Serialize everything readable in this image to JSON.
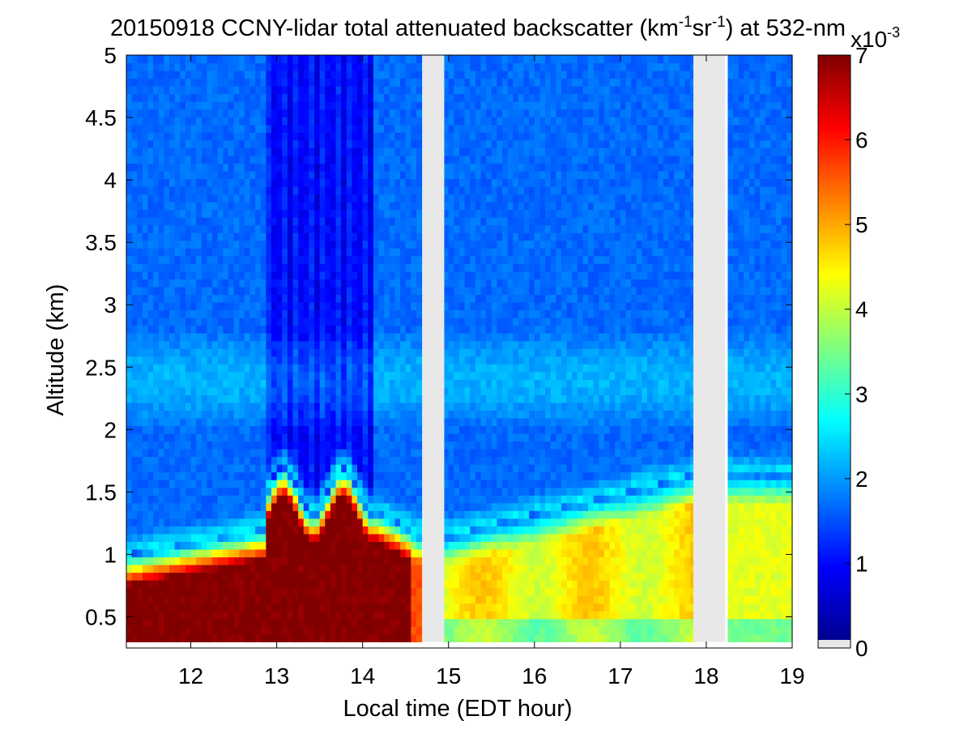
{
  "chart_data": {
    "type": "heatmap",
    "title": {
      "prefix": "20150918 CCNY-lidar total attenuated backscatter (km",
      "exp1": "-1",
      "mid": "sr",
      "exp2": "-1",
      "suffix": ") at 532-nm"
    },
    "xlabel": "Local time (EDT hour)",
    "ylabel": "Altitude (km)",
    "xlim": [
      11.25,
      19.0
    ],
    "ylim": [
      0.25,
      5.0
    ],
    "data_bottom": 0.3,
    "x_ticks": [
      12,
      13,
      14,
      15,
      16,
      17,
      18,
      19
    ],
    "y_ticks": [
      0.5,
      1,
      1.5,
      2,
      2.5,
      3,
      3.5,
      4,
      4.5,
      5
    ],
    "data_gaps": [
      [
        14.7,
        14.95
      ],
      [
        17.85,
        18.22
      ]
    ],
    "colorbar": {
      "range": [
        0,
        7
      ],
      "ticks": [
        0,
        1,
        2,
        3,
        4,
        5,
        6,
        7
      ],
      "multiplier_base": "x10",
      "multiplier_exp": "-3",
      "colormap": "jet",
      "missing_color": "#e8e8e8"
    },
    "layers": [
      {
        "period": [
          11.25,
          14.7
        ],
        "boundary_layer_top_km": [
          1.0,
          1.75
        ],
        "core_value": 7.0
      },
      {
        "period": [
          14.95,
          17.85
        ],
        "boundary_layer_top_km": [
          1.1,
          1.7
        ],
        "core_value": 4.5
      },
      {
        "period": [
          18.22,
          19.0
        ],
        "boundary_layer_top_km": [
          1.6,
          1.75
        ],
        "core_value": 4.3
      }
    ],
    "free_troposphere_value": 1.6,
    "residual_layer_km": [
      2.0,
      2.8
    ],
    "residual_layer_value": 2.3
  }
}
